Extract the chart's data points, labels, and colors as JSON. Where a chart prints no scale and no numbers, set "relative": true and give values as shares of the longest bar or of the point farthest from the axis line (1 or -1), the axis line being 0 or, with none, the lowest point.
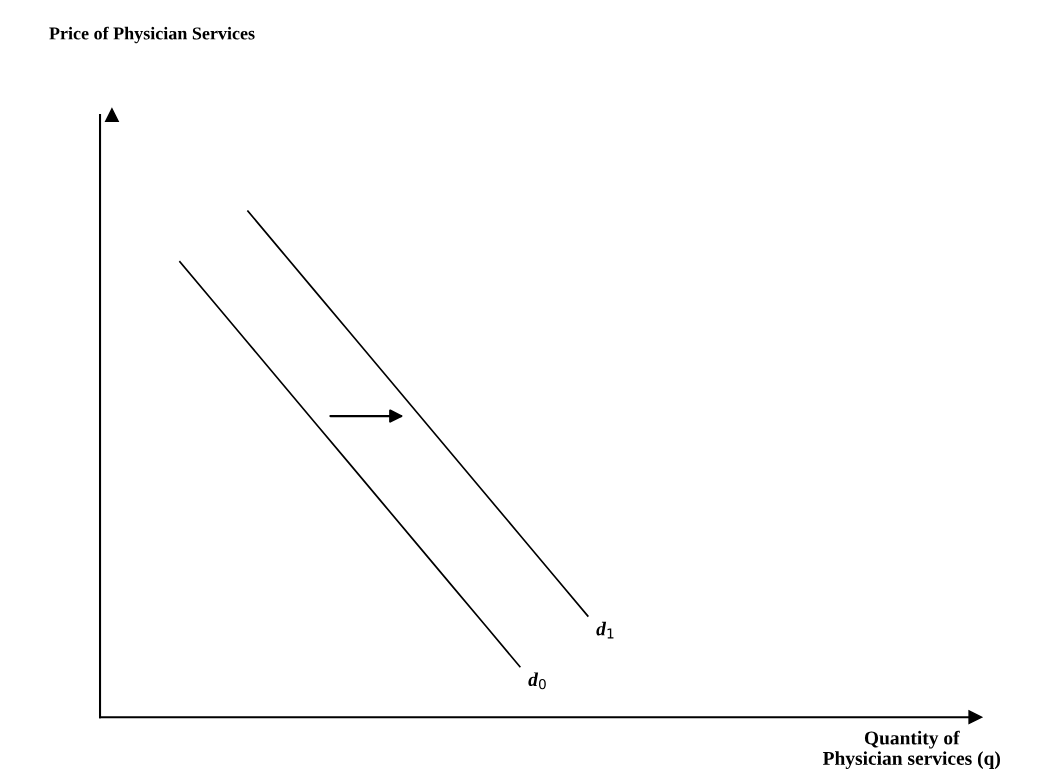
{
  "chart_data": {
    "type": "line",
    "title": "Price of Physician Services",
    "xlabel": "Quantity of\nPhysician services (q)",
    "relative": true,
    "legend": false,
    "marker": "none",
    "line_style": "solid",
    "categories": [
      null,
      null,
      null,
      null,
      null,
      null,
      null,
      null,
      null,
      null,
      null,
      null,
      null,
      null,
      null,
      null,
      null,
      null,
      null,
      null,
      null,
      null,
      null,
      null,
      null,
      null
    ],
    "series": [
      {
        "name": "d$_{0}$",
        "color": "#000000",
        "values": [
          null,
          null,
          0.9,
          0.82,
          0.74,
          0.66,
          0.58,
          0.5,
          0.42,
          0.34,
          0.26,
          0.18,
          0.1,
          null,
          null,
          null,
          null,
          null,
          null,
          null,
          null,
          null,
          null,
          null,
          null,
          null
        ]
      },
      {
        "name": "d$_{1}$",
        "color": "#000000",
        "values": [
          null,
          null,
          null,
          null,
          1.0,
          0.92,
          0.84,
          0.76,
          0.68,
          0.6,
          0.52,
          0.44,
          0.36,
          0.28,
          0.2,
          null,
          null,
          null,
          null,
          null,
          null,
          null,
          null,
          null,
          null,
          null
        ]
      }
    ]
  }
}
